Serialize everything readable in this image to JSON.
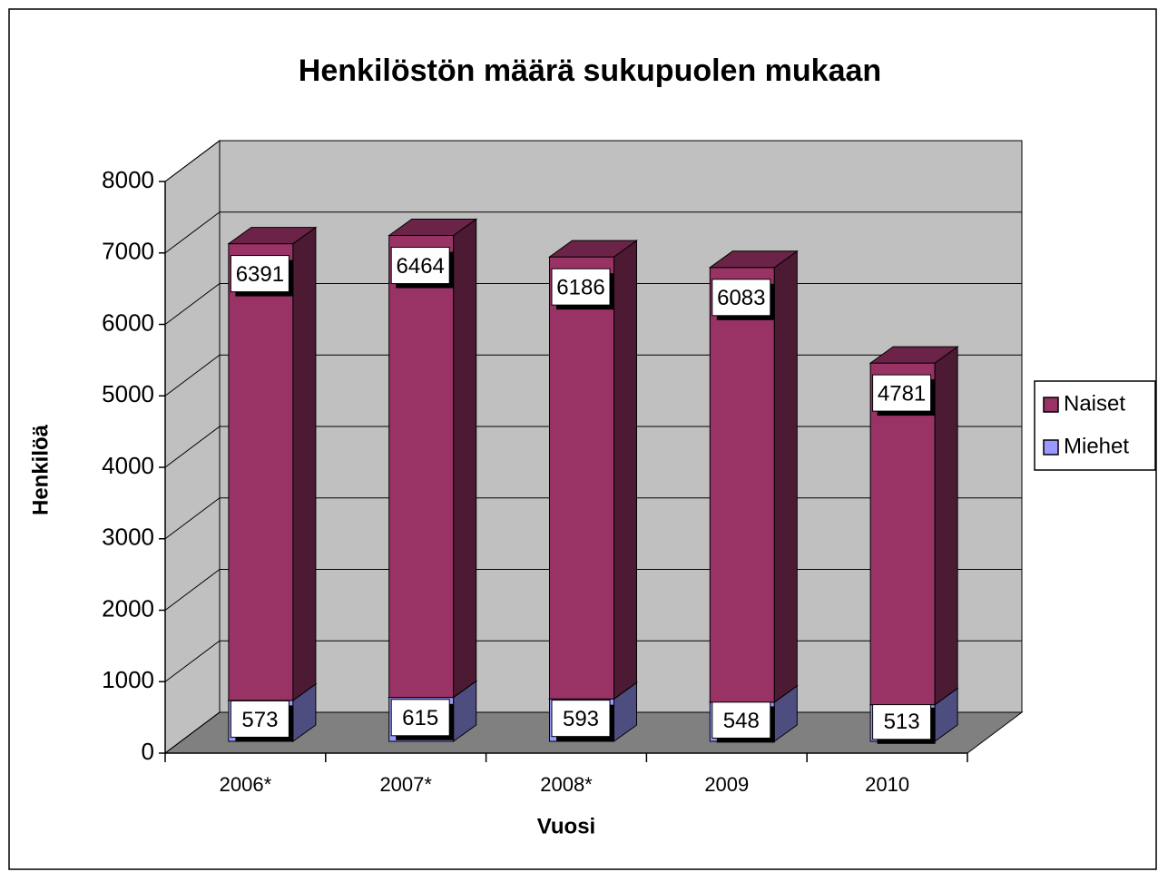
{
  "chart_data": {
    "type": "bar3d_stacked",
    "title": "Henkilöstön määrä sukupuolen mukaan",
    "x_label": "Vuosi",
    "y_label": "Henkilöä",
    "categories": [
      "2006*",
      "2007*",
      "2008*",
      "2009",
      "2010"
    ],
    "series": [
      {
        "name": "Miehet",
        "color": "#9999ff",
        "values": [
          573,
          615,
          593,
          548,
          513
        ]
      },
      {
        "name": "Naiset",
        "color": "#993366",
        "values": [
          6391,
          6464,
          6186,
          6083,
          4781
        ]
      }
    ],
    "ylim": [
      0,
      8000
    ],
    "yticks": [
      0,
      1000,
      2000,
      3000,
      4000,
      5000,
      6000,
      7000,
      8000
    ],
    "grid": true,
    "legend": "right"
  }
}
